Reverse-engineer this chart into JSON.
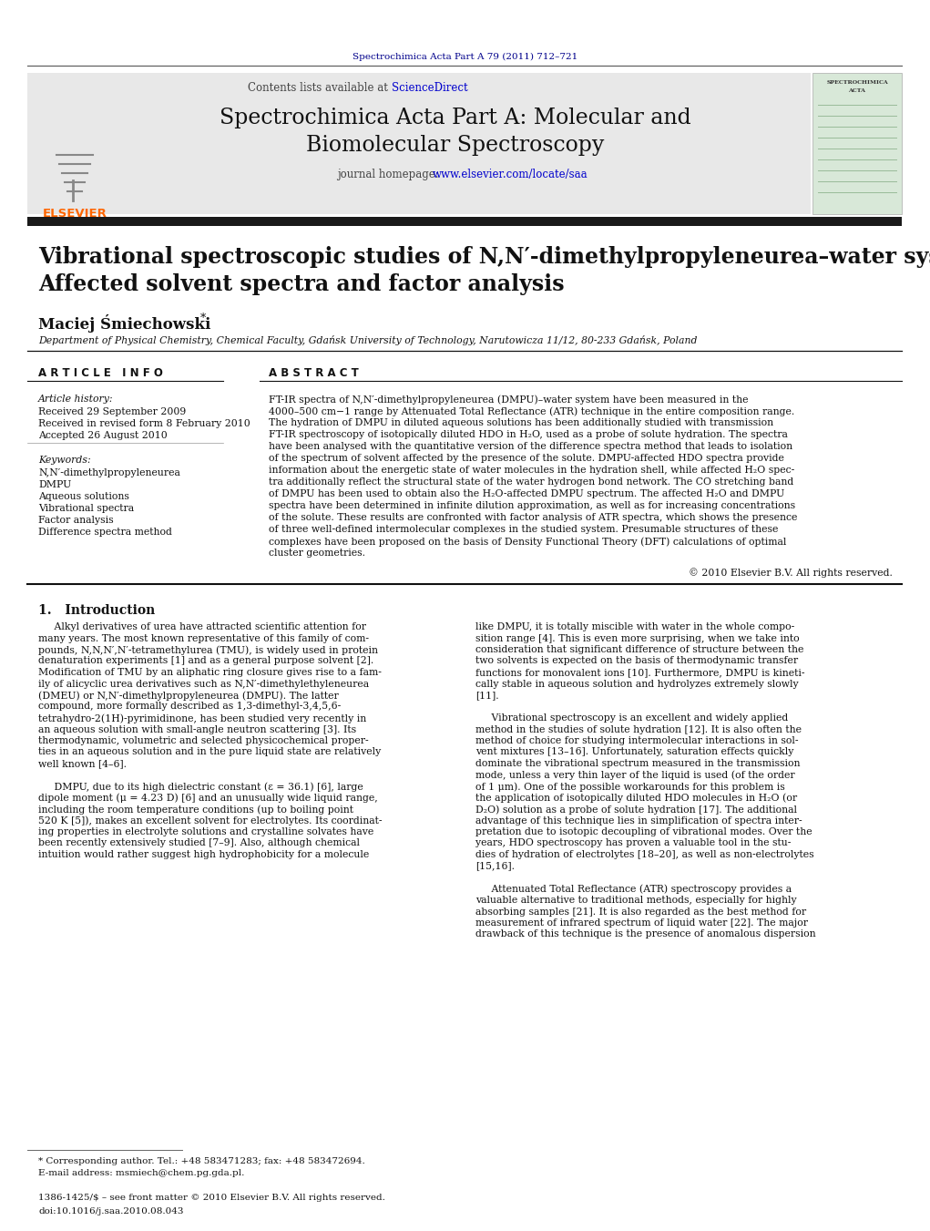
{
  "page_bg": "#ffffff",
  "top_journal_ref": "Spectrochimica Acta Part A 79 (2011) 712–721",
  "top_journal_color": "#00008B",
  "header_bg": "#e8e8e8",
  "header_title_line1": "Spectrochimica Acta Part A: Molecular and",
  "header_title_line2": "Biomolecular Spectroscopy",
  "contents_text": "Contents lists available at ",
  "sciencedirect_text": "ScienceDirect",
  "journal_homepage_prefix": "journal homepage: ",
  "journal_homepage_link": "www.elsevier.com/locate/saa",
  "elsevier_color": "#FF6600",
  "link_color": "#0000CD",
  "dark_bar_color": "#1a1a1a",
  "paper_title_line1": "Vibrational spectroscopic studies of N,N′-dimethylpropyleneurea–water system:",
  "paper_title_line2": "Affected solvent spectra and factor analysis",
  "author_name": "Maciej Śmiechowski",
  "affiliation": "Department of Physical Chemistry, Chemical Faculty, Gdańsk University of Technology, Narutowicza 11/12, 80-233 Gdańsk, Poland",
  "article_info_title": "A R T I C L E   I N F O",
  "abstract_title": "A B S T R A C T",
  "article_history_label": "Article history:",
  "received1": "Received 29 September 2009",
  "received2": "Received in revised form 8 February 2010",
  "accepted": "Accepted 26 August 2010",
  "keywords_label": "Keywords:",
  "keywords": [
    "N,N′-dimethylpropyleneurea",
    "DMPU",
    "Aqueous solutions",
    "Vibrational spectra",
    "Factor analysis",
    "Difference spectra method"
  ],
  "abstract_lines": [
    "FT-IR spectra of N,N′-dimethylpropyleneurea (DMPU)–water system have been measured in the",
    "4000–500 cm−1 range by Attenuated Total Reflectance (ATR) technique in the entire composition range.",
    "The hydration of DMPU in diluted aqueous solutions has been additionally studied with transmission",
    "FT-IR spectroscopy of isotopically diluted HDO in H₂O, used as a probe of solute hydration. The spectra",
    "have been analysed with the quantitative version of the difference spectra method that leads to isolation",
    "of the spectrum of solvent affected by the presence of the solute. DMPU-affected HDO spectra provide",
    "information about the energetic state of water molecules in the hydration shell, while affected H₂O spec-",
    "tra additionally reflect the structural state of the water hydrogen bond network. The CO stretching band",
    "of DMPU has been used to obtain also the H₂O-affected DMPU spectrum. The affected H₂O and DMPU",
    "spectra have been determined in infinite dilution approximation, as well as for increasing concentrations",
    "of the solute. These results are confronted with factor analysis of ATR spectra, which shows the presence",
    "of three well-defined intermolecular complexes in the studied system. Presumable structures of these",
    "complexes have been proposed on the basis of Density Functional Theory (DFT) calculations of optimal",
    "cluster geometries."
  ],
  "copyright_text": "© 2010 Elsevier B.V. All rights reserved.",
  "section1_title": "1.   Introduction",
  "intro_col1_lines": [
    "     Alkyl derivatives of urea have attracted scientific attention for",
    "many years. The most known representative of this family of com-",
    "pounds, N,N,N′,N′-tetramethylurea (TMU), is widely used in protein",
    "denaturation experiments [1] and as a general purpose solvent [2].",
    "Modification of TMU by an aliphatic ring closure gives rise to a fam-",
    "ily of alicyclic urea derivatives such as N,N′-dimethylethyleneurea",
    "(DMEU) or N,N′-dimethylpropyleneurea (DMPU). The latter",
    "compound, more formally described as 1,3-dimethyl-3,4,5,6-",
    "tetrahydro-2(1H)-pyrimidinone, has been studied very recently in",
    "an aqueous solution with small-angle neutron scattering [3]. Its",
    "thermodynamic, volumetric and selected physicochemical proper-",
    "ties in an aqueous solution and in the pure liquid state are relatively",
    "well known [4–6].",
    "",
    "     DMPU, due to its high dielectric constant (ε = 36.1) [6], large",
    "dipole moment (μ = 4.23 D) [6] and an unusually wide liquid range,",
    "including the room temperature conditions (up to boiling point",
    "520 K [5]), makes an excellent solvent for electrolytes. Its coordinat-",
    "ing properties in electrolyte solutions and crystalline solvates have",
    "been recently extensively studied [7–9]. Also, although chemical",
    "intuition would rather suggest high hydrophobicity for a molecule"
  ],
  "intro_col2_lines": [
    "like DMPU, it is totally miscible with water in the whole compo-",
    "sition range [4]. This is even more surprising, when we take into",
    "consideration that significant difference of structure between the",
    "two solvents is expected on the basis of thermodynamic transfer",
    "functions for monovalent ions [10]. Furthermore, DMPU is kineti-",
    "cally stable in aqueous solution and hydrolyzes extremely slowly",
    "[11].",
    "",
    "     Vibrational spectroscopy is an excellent and widely applied",
    "method in the studies of solute hydration [12]. It is also often the",
    "method of choice for studying intermolecular interactions in sol-",
    "vent mixtures [13–16]. Unfortunately, saturation effects quickly",
    "dominate the vibrational spectrum measured in the transmission",
    "mode, unless a very thin layer of the liquid is used (of the order",
    "of 1 μm). One of the possible workarounds for this problem is",
    "the application of isotopically diluted HDO molecules in H₂O (or",
    "D₂O) solution as a probe of solute hydration [17]. The additional",
    "advantage of this technique lies in simplification of spectra inter-",
    "pretation due to isotopic decoupling of vibrational modes. Over the",
    "years, HDO spectroscopy has proven a valuable tool in the stu-",
    "dies of hydration of electrolytes [18–20], as well as non-electrolytes",
    "[15,16].",
    "",
    "     Attenuated Total Reflectance (ATR) spectroscopy provides a",
    "valuable alternative to traditional methods, especially for highly",
    "absorbing samples [21]. It is also regarded as the best method for",
    "measurement of infrared spectrum of liquid water [22]. The major",
    "drawback of this technique is the presence of anomalous dispersion"
  ],
  "footnote_line1": "* Corresponding author. Tel.: +48 583471283; fax: +48 583472694.",
  "footnote_line2": "E-mail address: msmiech@chem.pg.gda.pl.",
  "footer_issn": "1386-1425/$ – see front matter © 2010 Elsevier B.V. All rights reserved.",
  "footer_doi": "doi:10.1016/j.saa.2010.08.043"
}
